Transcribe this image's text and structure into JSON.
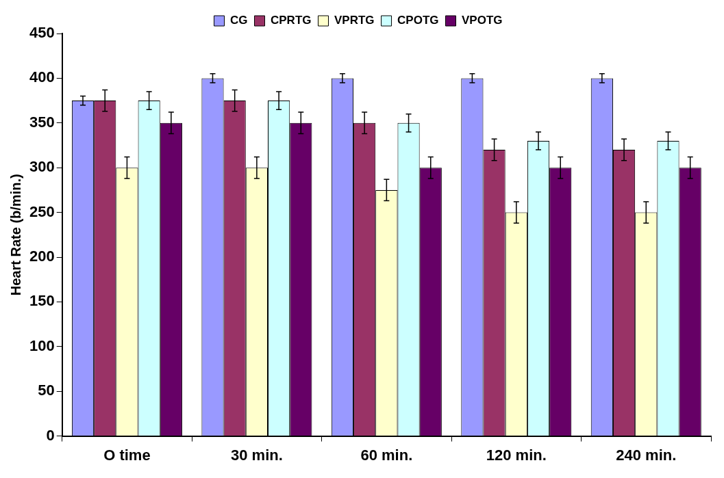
{
  "chart_data": {
    "type": "bar",
    "ylabel": "Heart Rate (b/min.)",
    "categories": [
      "O time",
      "30 min.",
      "60 min.",
      "120 min.",
      "240 min."
    ],
    "series": [
      {
        "name": "CG",
        "color": "#9999ff",
        "values": [
          375,
          400,
          400,
          400,
          400
        ],
        "errors": [
          5,
          5,
          5,
          5,
          5
        ]
      },
      {
        "name": "CPRTG",
        "color": "#993366",
        "values": [
          375,
          375,
          350,
          320,
          320
        ],
        "errors": [
          12,
          12,
          12,
          12,
          12
        ]
      },
      {
        "name": "VPRTG",
        "color": "#ffffcc",
        "values": [
          300,
          300,
          275,
          250,
          250
        ],
        "errors": [
          12,
          12,
          12,
          12,
          12
        ]
      },
      {
        "name": "CPOTG",
        "color": "#ccffff",
        "values": [
          375,
          375,
          350,
          330,
          330
        ],
        "errors": [
          10,
          10,
          10,
          10,
          10
        ]
      },
      {
        "name": "VPOTG",
        "color": "#660066",
        "values": [
          350,
          350,
          300,
          300,
          300
        ],
        "errors": [
          12,
          12,
          12,
          12,
          12
        ]
      }
    ],
    "ylim": [
      0,
      450
    ],
    "yticks": [
      0,
      50,
      100,
      150,
      200,
      250,
      300,
      350,
      400,
      450
    ],
    "grid": false,
    "legend": "top"
  }
}
